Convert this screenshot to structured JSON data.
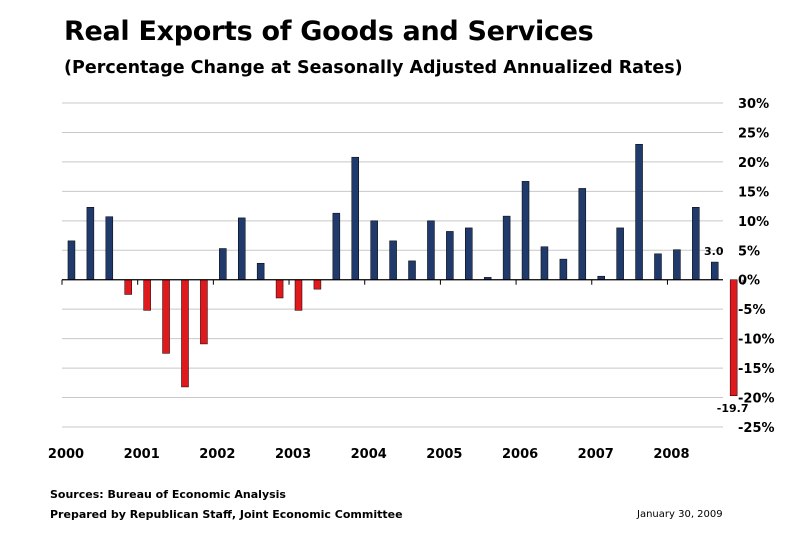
{
  "header": {
    "title": "Real Exports of Goods and Services",
    "subtitle": "(Percentage Change at Seasonally Adjusted Annualized Rates)"
  },
  "footer": {
    "sources": "Sources: Bureau of Economic Analysis",
    "prepared": "Prepared by Republican Staff, Joint Economic Committee",
    "date": "January 30, 2009"
  },
  "colors": {
    "positive": "#1f3a6b",
    "negative": "#e0191c",
    "grid": "#c8c8c8",
    "axis": "#000000"
  },
  "chart_data": {
    "type": "bar",
    "title": "Real Exports of Goods and Services",
    "subtitle": "(Percentage Change at Seasonally Adjusted Annualized Rates)",
    "xlabel": "",
    "ylabel": "",
    "y_axis_position": "right",
    "ylim": [
      -25,
      30
    ],
    "yticks": [
      30,
      25,
      20,
      15,
      10,
      5,
      0,
      -5,
      -10,
      -15,
      -20,
      -25
    ],
    "ytick_labels": [
      "30%",
      "25%",
      "20%",
      "15%",
      "10%",
      "5%",
      "0%",
      "-5%",
      "-10%",
      "-15%",
      "-20%",
      "-25%"
    ],
    "grid": true,
    "year_labels": [
      "2000",
      "2001",
      "2002",
      "2003",
      "2004",
      "2005",
      "2006",
      "2007",
      "2008"
    ],
    "quarters": [
      "2000Q1",
      "2000Q2",
      "2000Q3",
      "2000Q4",
      "2001Q1",
      "2001Q2",
      "2001Q3",
      "2001Q4",
      "2002Q1",
      "2002Q2",
      "2002Q3",
      "2002Q4",
      "2003Q1",
      "2003Q2",
      "2003Q3",
      "2003Q4",
      "2004Q1",
      "2004Q2",
      "2004Q3",
      "2004Q4",
      "2005Q1",
      "2005Q2",
      "2005Q3",
      "2005Q4",
      "2006Q1",
      "2006Q2",
      "2006Q3",
      "2006Q4",
      "2007Q1",
      "2007Q2",
      "2007Q3",
      "2007Q4",
      "2008Q1",
      "2008Q2",
      "2008Q3",
      "2008Q4"
    ],
    "values": [
      6.6,
      12.3,
      10.7,
      -2.5,
      -5.2,
      -12.5,
      -18.2,
      -10.9,
      5.3,
      10.5,
      2.8,
      -3.1,
      -5.2,
      -1.6,
      11.3,
      20.8,
      10.0,
      6.6,
      3.2,
      10.0,
      8.2,
      8.8,
      0.4,
      10.8,
      16.7,
      5.6,
      3.5,
      15.5,
      0.6,
      8.8,
      23.0,
      4.4,
      5.1,
      12.3,
      3.0,
      -19.7
    ],
    "annotations": [
      {
        "index": 34,
        "text": "3.0"
      },
      {
        "index": 35,
        "text": "-19.7"
      }
    ]
  }
}
